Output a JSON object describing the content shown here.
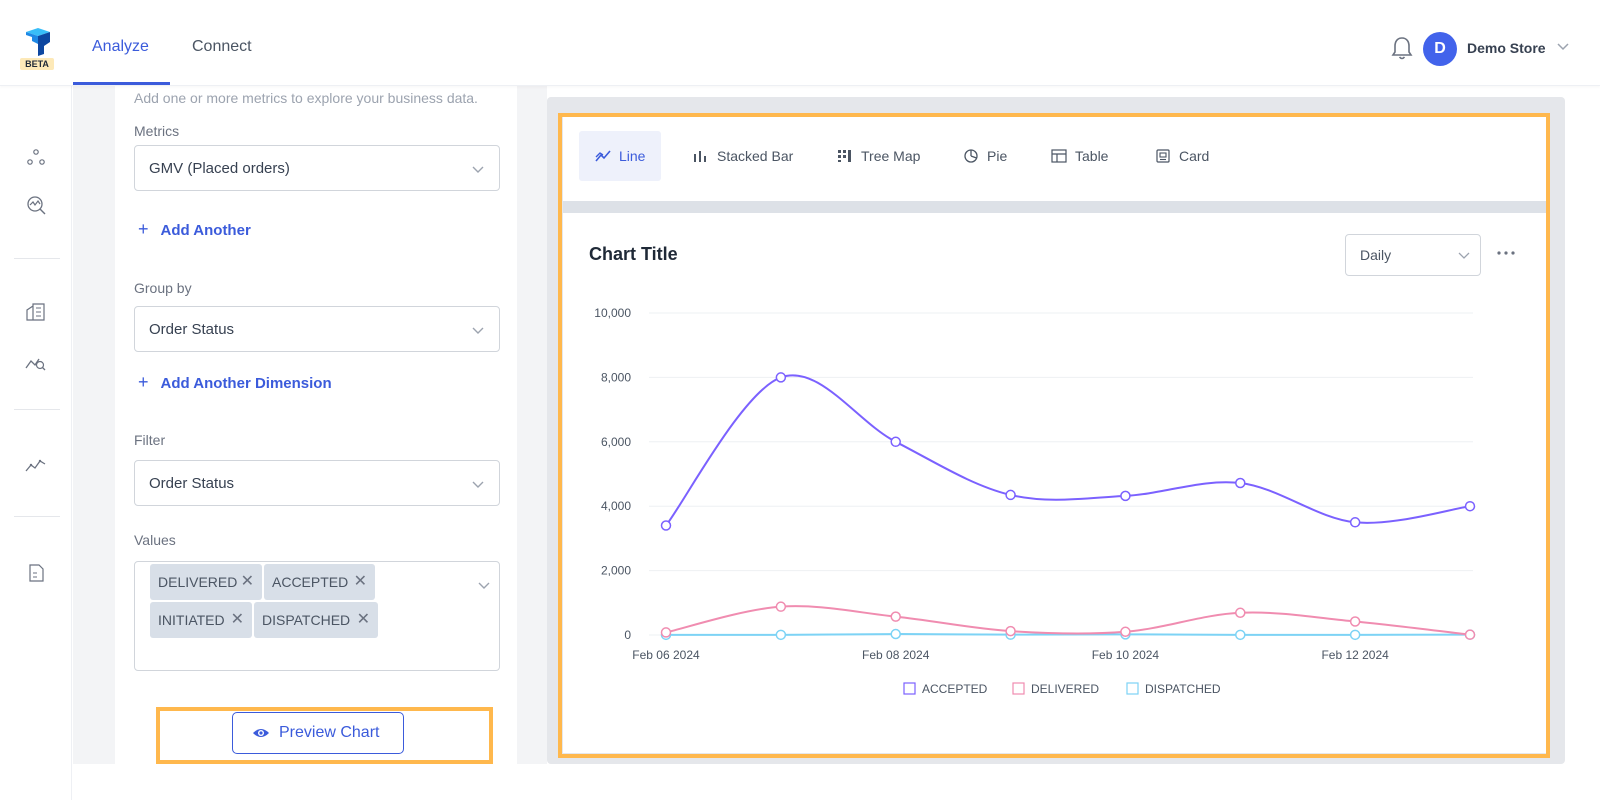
{
  "app": {
    "logo_badge": "BETA",
    "nav_tabs": [
      {
        "label": "Analyze",
        "active": true
      },
      {
        "label": "Connect",
        "active": false
      }
    ],
    "user": {
      "initial": "D",
      "store": "Demo Store"
    },
    "accent_color": "#3b5bdb"
  },
  "rail": {
    "icons": [
      "nodes-icon",
      "search-analytics-icon",
      "building-icon",
      "chart-search-icon",
      "trend-icon",
      "document-icon"
    ]
  },
  "config": {
    "hint": "Add one or more metrics to explore your business data.",
    "metrics_label": "Metrics",
    "metric_value": "GMV (Placed orders)",
    "add_another": "Add Another",
    "group_by_label": "Group by",
    "group_by_value": "Order Status",
    "add_dimension": "Add Another Dimension",
    "filter_label": "Filter",
    "filter_value": "Order Status",
    "values_label": "Values",
    "values": [
      "DELIVERED",
      "ACCEPTED",
      "INITIATED",
      "DISPATCHED"
    ],
    "preview_button": "Preview Chart"
  },
  "chart_tabs": [
    {
      "label": "Line",
      "icon": "line-chart-icon",
      "active": true
    },
    {
      "label": "Stacked Bar",
      "icon": "stacked-bar-icon",
      "active": false
    },
    {
      "label": "Tree Map",
      "icon": "tree-map-icon",
      "active": false
    },
    {
      "label": "Pie",
      "icon": "pie-icon",
      "active": false
    },
    {
      "label": "Table",
      "icon": "table-icon",
      "active": false
    },
    {
      "label": "Card",
      "icon": "card-icon",
      "active": false
    }
  ],
  "chart_header": {
    "title": "Chart Title",
    "period": "Daily"
  },
  "chart_data": {
    "type": "line",
    "title": "Chart Title",
    "x": [
      "2024-02-06",
      "2024-02-07",
      "2024-02-08",
      "2024-02-09",
      "2024-02-10",
      "2024-02-11",
      "2024-02-12",
      "2024-02-13"
    ],
    "x_ticks": [
      {
        "index": 0,
        "label": "Feb 06 2024"
      },
      {
        "index": 2,
        "label": "Feb 08 2024"
      },
      {
        "index": 4,
        "label": "Feb 10 2024"
      },
      {
        "index": 6,
        "label": "Feb 12 2024"
      }
    ],
    "y_ticks": [
      "0",
      "2,000",
      "4,000",
      "6,000",
      "8,000",
      "10,000"
    ],
    "ylim": [
      0,
      10000
    ],
    "grid": true,
    "legend_position": "bottom",
    "series": [
      {
        "name": "ACCEPTED",
        "color": "#7b61ff",
        "values": [
          3400,
          8000,
          6000,
          4350,
          4320,
          4720,
          3500,
          4000
        ]
      },
      {
        "name": "DELIVERED",
        "color": "#f08cb0",
        "values": [
          80,
          880,
          570,
          120,
          100,
          690,
          420,
          10
        ]
      },
      {
        "name": "DISPATCHED",
        "color": "#7dd3f5",
        "values": [
          5,
          5,
          30,
          10,
          20,
          5,
          5,
          10
        ]
      }
    ]
  }
}
